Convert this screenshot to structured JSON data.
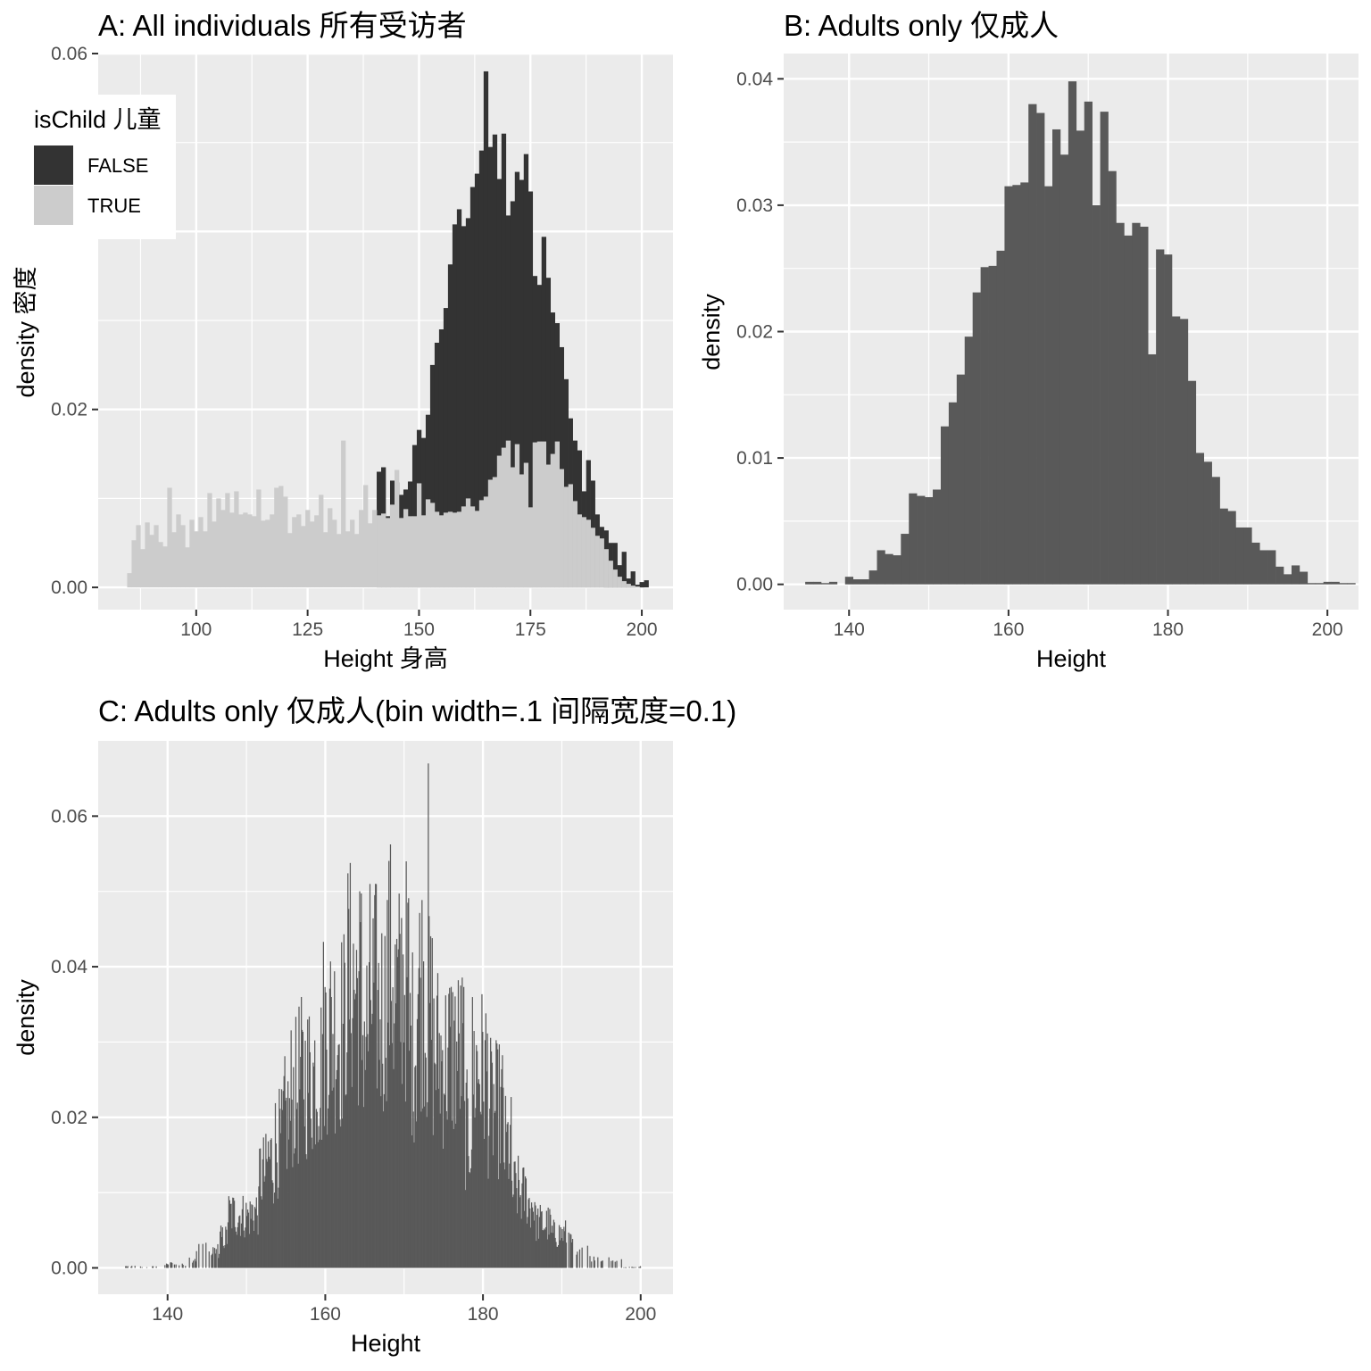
{
  "chart_data": [
    {
      "id": "A",
      "type": "bar",
      "title": "A: All individuals 所有受访者",
      "xlabel": "Height 身高",
      "ylabel": "density 密度",
      "xlim": [
        78,
        207
      ],
      "ylim": [
        -0.0025,
        0.06
      ],
      "x_ticks": [
        100,
        125,
        150,
        175,
        200
      ],
      "y_ticks": [
        0.0,
        0.02,
        0.06
      ],
      "y_tick_labels": [
        "0.00",
        "0.02",
        "0.06"
      ],
      "binwidth": 1,
      "legend": {
        "title": "isChild 儿童",
        "position": "top-left",
        "entries": [
          {
            "label": "FALSE",
            "color": "#333333"
          },
          {
            "label": "TRUE",
            "color": "#cccccc"
          }
        ]
      },
      "series": [
        {
          "name": "TRUE",
          "color": "#cccccc",
          "x_start": 85,
          "values": [
            0.0016,
            0.0053,
            0.007,
            0.0043,
            0.0073,
            0.0059,
            0.007,
            0.0051,
            0.0046,
            0.0112,
            0.0062,
            0.0082,
            0.007,
            0.0045,
            0.0076,
            0.0063,
            0.0079,
            0.0063,
            0.0106,
            0.0074,
            0.01,
            0.0087,
            0.0106,
            0.0084,
            0.0108,
            0.0082,
            0.0084,
            0.0082,
            0.008,
            0.011,
            0.0075,
            0.0076,
            0.0082,
            0.0112,
            0.0114,
            0.0102,
            0.0061,
            0.0079,
            0.0082,
            0.0069,
            0.0087,
            0.0074,
            0.0081,
            0.0104,
            0.0062,
            0.0089,
            0.0076,
            0.006,
            0.0165,
            0.0063,
            0.0076,
            0.006,
            0.0087,
            0.0115,
            0.0072,
            0.0087,
            0.0081,
            0.0083,
            0.0078,
            0.0093,
            0.0132,
            0.0078,
            0.0088,
            0.008,
            0.008,
            0.0117,
            0.0081,
            0.0099,
            0.0095,
            0.0085,
            0.0081,
            0.0084,
            0.0085,
            0.0084,
            0.0085,
            0.0091,
            0.01,
            0.0091,
            0.0086,
            0.0098,
            0.0102,
            0.0121,
            0.0124,
            0.0148,
            0.0157,
            0.0165,
            0.0135,
            0.0161,
            0.0127,
            0.014,
            0.009,
            0.0163,
            0.0164,
            0.0164,
            0.0138,
            0.015,
            0.0164,
            0.0133,
            0.0113,
            0.0116,
            0.0097,
            0.0082,
            0.0079,
            0.0076,
            0.0067,
            0.0058,
            0.0055,
            0.0043,
            0.003,
            0.002,
            0.0012,
            0.0007,
            0.0004,
            0.0002,
            0.0001,
            0,
            0,
            0,
            0,
            0,
            0,
            0,
            0,
            0,
            0,
            0
          ]
        },
        {
          "name": "FALSE",
          "color": "#333333",
          "x_start": 85,
          "values": [
            0.0016,
            0.0053,
            0.007,
            0.0043,
            0.0073,
            0.0059,
            0.007,
            0.0051,
            0.0046,
            0.0112,
            0.0062,
            0.0082,
            0.007,
            0.0045,
            0.0076,
            0.0063,
            0.0079,
            0.0063,
            0.0106,
            0.0074,
            0.01,
            0.0087,
            0.0106,
            0.0084,
            0.0108,
            0.0082,
            0.0084,
            0.0082,
            0.008,
            0.011,
            0.0075,
            0.0076,
            0.0082,
            0.0112,
            0.0114,
            0.0102,
            0.0061,
            0.0079,
            0.0082,
            0.0069,
            0.0087,
            0.0074,
            0.0081,
            0.0104,
            0.0062,
            0.0089,
            0.0076,
            0.006,
            0.0165,
            0.0063,
            0.0076,
            0.006,
            0.0087,
            0.0115,
            0.0072,
            0.0087,
            0.0081,
            0.0083,
            0.0078,
            0.0093,
            0.0132,
            0.0078,
            0.0088,
            0.008,
            0.008,
            0.0117,
            0.0081,
            0.0099,
            0.0095,
            0.0085,
            0.0081,
            0.0084,
            0.0085,
            0.0084,
            0.0085,
            0.0091,
            0.01,
            0.0091,
            0.0086,
            0.0098,
            0.0102,
            0.0121,
            0.0124,
            0.0148,
            0.0157,
            0.0165,
            0.0135,
            0.0161,
            0.0127,
            0.014,
            0.009,
            0.0163,
            0.0164,
            0.0164,
            0.0138,
            0.015,
            0.0164,
            0.0133,
            0.0113,
            0.0116,
            0.0097,
            0.0082,
            0.0079,
            0.0076,
            0.0067,
            0.0058,
            0.0055,
            0.0043,
            0.003,
            0.002,
            0.0012,
            0.0007,
            0.0004,
            0.0002,
            0.0001,
            0,
            0,
            0,
            0,
            0,
            0,
            0,
            0,
            0,
            0,
            0
          ]
        }
      ],
      "false_stack_top": {
        "x_start": 141,
        "values": [
          0.013,
          0.0135,
          0.008,
          0.012,
          0.0118,
          0.0104,
          0.011,
          0.0119,
          0.016,
          0.0177,
          0.0168,
          0.0194,
          0.025,
          0.0275,
          0.029,
          0.0314,
          0.0363,
          0.0408,
          0.0425,
          0.0406,
          0.0415,
          0.045,
          0.0465,
          0.0491,
          0.058,
          0.0495,
          0.0509,
          0.0459,
          0.051,
          0.0418,
          0.0434,
          0.0467,
          0.0458,
          0.0487,
          0.0445,
          0.035,
          0.034,
          0.0394,
          0.0348,
          0.0309,
          0.0297,
          0.027,
          0.0234,
          0.019,
          0.0165,
          0.0154,
          0.0108,
          0.0143,
          0.012,
          0.0082,
          0.0068,
          0.0064,
          0.005,
          0.005,
          0.0025,
          0.004,
          0.001,
          0.0018,
          0.0003,
          0.0004,
          0.0008
        ]
      },
      "false_only_bins": {
        "x": [
          192,
          193,
          194,
          195,
          196,
          197,
          198,
          199,
          200
        ],
        "values": [
          0.0018,
          0.0015,
          0.001,
          0.0008,
          0.0004,
          0.0004,
          0.0002,
          0,
          0.0006
        ]
      }
    },
    {
      "id": "B",
      "type": "bar",
      "title": "B: Adults only 仅成人",
      "xlabel": "Height",
      "ylabel": "density",
      "xlim": [
        131.8,
        203.9
      ],
      "ylim": [
        -0.002,
        0.042
      ],
      "x_ticks": [
        140,
        160,
        180,
        200
      ],
      "y_ticks": [
        0.0,
        0.01,
        0.02,
        0.03,
        0.04
      ],
      "y_tick_labels": [
        "0.00",
        "0.01",
        "0.02",
        "0.03",
        "0.04"
      ],
      "binwidth": 1,
      "color": "#595959",
      "x_start": 134.5,
      "values": [
        0.0002,
        0.0002,
        0.0001,
        0.0002,
        0,
        0.0006,
        0.0004,
        0.0004,
        0.0011,
        0.0027,
        0.0024,
        0.0023,
        0.004,
        0.0072,
        0.007,
        0.0069,
        0.0075,
        0.0125,
        0.0144,
        0.0166,
        0.0196,
        0.0231,
        0.0251,
        0.0252,
        0.0264,
        0.0315,
        0.0316,
        0.0318,
        0.038,
        0.0373,
        0.0315,
        0.036,
        0.034,
        0.0398,
        0.0359,
        0.0382,
        0.03,
        0.0374,
        0.0327,
        0.0286,
        0.0276,
        0.0286,
        0.0283,
        0.0182,
        0.0265,
        0.0261,
        0.0212,
        0.021,
        0.0161,
        0.0104,
        0.0097,
        0.0085,
        0.006,
        0.0058,
        0.0045,
        0.0045,
        0.0033,
        0.0027,
        0.0027,
        0.0014,
        0.0008,
        0.0015,
        0.001,
        0.0001,
        0.0001,
        0.0002,
        0.0002,
        0.0001,
        0.0001
      ]
    },
    {
      "id": "C",
      "type": "bar",
      "title": "C: Adults only 仅成人(bin width=.1 间隔宽度=0.1)",
      "xlabel": "Height",
      "ylabel": "density",
      "xlim": [
        131.2,
        204.1
      ],
      "ylim": [
        -0.0035,
        0.07
      ],
      "x_ticks": [
        140,
        160,
        180,
        200
      ],
      "y_ticks": [
        0.0,
        0.02,
        0.04,
        0.06
      ],
      "y_tick_labels": [
        "0.00",
        "0.02",
        "0.04",
        "0.06"
      ],
      "binwidth": 0.1,
      "color": "#595959",
      "peak": {
        "x": 173.0,
        "value": 0.067
      },
      "bins_range": [
        134.5,
        200.5
      ]
    }
  ]
}
